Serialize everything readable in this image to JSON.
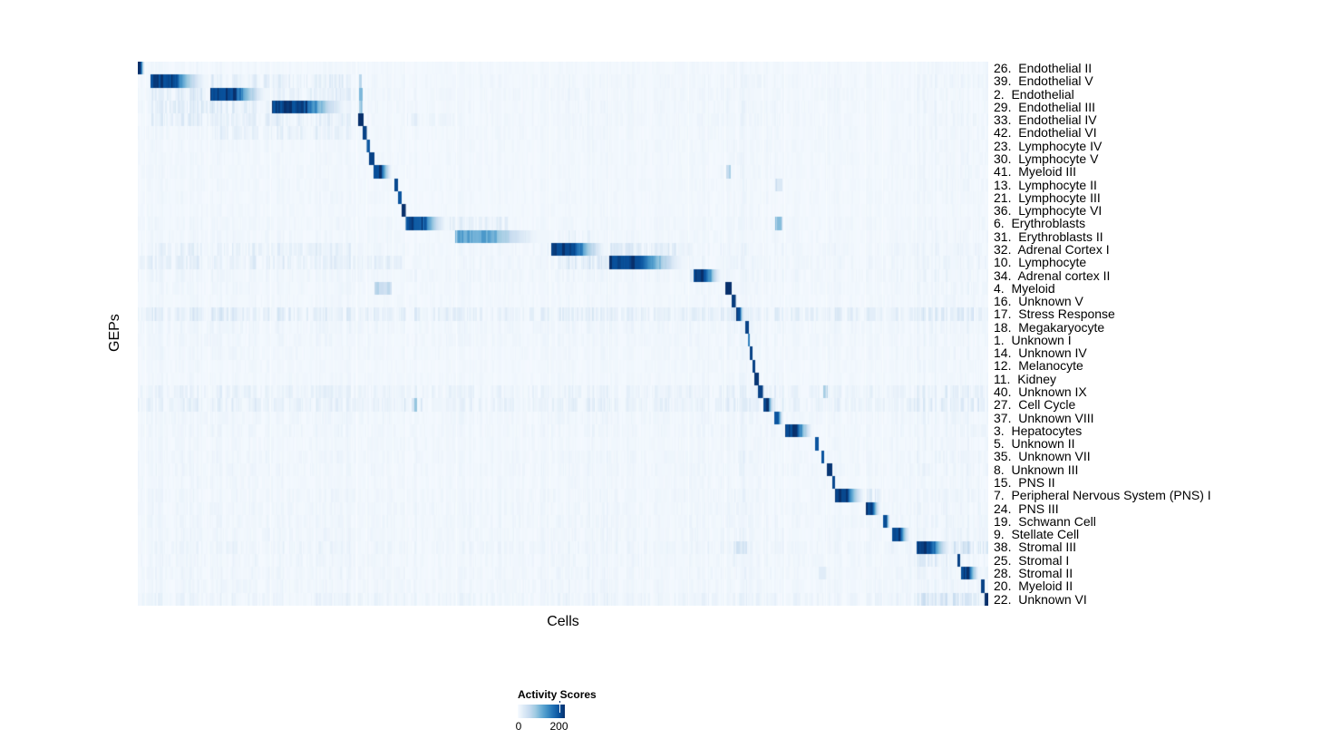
{
  "figure": {
    "y_axis_label": "GEPs",
    "x_axis_label": "Cells",
    "legend": {
      "title": "Activity Scores",
      "tick_min": "0",
      "tick_max": "200",
      "tick_max_pos": 0.875
    }
  },
  "chart_data": {
    "type": "heatmap",
    "xlabel": "Cells",
    "ylabel": "GEPs",
    "legend_title": "Activity Scores",
    "colorscale": {
      "name": "Blues",
      "min": 0,
      "max": 230,
      "legend_ticks": [
        0,
        200
      ],
      "stops": [
        "#f7fbff",
        "#deebf7",
        "#c6dbef",
        "#9ecae1",
        "#6baed6",
        "#4292c6",
        "#2171b5",
        "#08519c",
        "#08306b"
      ]
    },
    "description": "Each row is a GEP; cells (columns) are grouped so each GEP's assigned cell cluster forms a dark diagonal block. block = [start,end] fraction of x-axis, peak = activity score at block start.",
    "hot_columns": [
      [
        0.015,
        0.252,
        1.25
      ],
      [
        0.485,
        0.555,
        1.2
      ],
      [
        0.648,
        0.76,
        1.2
      ],
      [
        0.7,
        0.716,
        1.5
      ],
      [
        0.915,
        1.0,
        1.6
      ]
    ],
    "seams": [
      0.0085,
      0.0832,
      0.1557,
      0.257,
      0.2687,
      0.2996,
      0.3145,
      0.3742,
      0.484,
      0.5535,
      0.6472,
      0.69,
      0.703,
      0.735,
      0.76,
      0.809,
      0.8555,
      0.8755,
      0.915,
      0.963
    ],
    "rows": [
      {
        "label": "26.  Endothelial II",
        "block": [
          0.0005,
          0.008
        ],
        "peak": 230,
        "noise": 0.03
      },
      {
        "label": "39.  Endothelial V",
        "block": [
          0.015,
          0.084
        ],
        "peak": 230,
        "noise": 0.045,
        "texture": [
          [
            0.086,
            0.155,
            0.1
          ],
          [
            0.158,
            0.252,
            0.08
          ]
        ],
        "spots": [
          [
            0.2596,
            0.263,
            110
          ]
        ]
      },
      {
        "label": "2.  Endothelial",
        "block": [
          0.0855,
          0.1555
        ],
        "peak": 230,
        "noise": 0.045,
        "texture": [
          [
            0.015,
            0.084,
            0.12
          ],
          [
            0.158,
            0.255,
            0.09
          ]
        ],
        "spots": [
          [
            0.2596,
            0.2637,
            185
          ]
        ]
      },
      {
        "label": "29.  Endothelial III",
        "block": [
          0.158,
          0.2515
        ],
        "peak": 228,
        "noise": 0.045,
        "texture": [
          [
            0.015,
            0.155,
            0.11
          ]
        ],
        "spots": [
          [
            0.2596,
            0.2637,
            140
          ]
        ]
      },
      {
        "label": "33.  Endothelial IV",
        "block": [
          0.2591,
          0.2646
        ],
        "peak": 230,
        "noise": 0.045,
        "texture": [
          [
            0.015,
            0.252,
            0.09
          ],
          [
            0.315,
            0.372,
            0.07
          ]
        ]
      },
      {
        "label": "42.  Endothelial VI",
        "block": [
          0.2646,
          0.2689
        ],
        "peak": 215,
        "noise": 0.04,
        "texture": [
          [
            0.085,
            0.252,
            0.06
          ]
        ]
      },
      {
        "label": "23.  Lymphocyte IV",
        "block": [
          0.2689,
          0.2721
        ],
        "peak": 195,
        "noise": 0.035
      },
      {
        "label": "30.  Lymphocyte V",
        "block": [
          0.2721,
          0.2774
        ],
        "peak": 215,
        "noise": 0.035
      },
      {
        "label": "41.  Myeloid III",
        "block": [
          0.2774,
          0.2998
        ],
        "peak": 230,
        "noise": 0.035,
        "spots": [
          [
            0.6909,
            0.6971,
            100
          ]
        ]
      },
      {
        "label": "13.  Lymphocyte II",
        "block": [
          0.3017,
          0.3059
        ],
        "peak": 210,
        "noise": 0.035,
        "spots": [
          [
            0.7486,
            0.7575,
            55
          ]
        ]
      },
      {
        "label": "21.  Lymphocyte III",
        "block": [
          0.3059,
          0.31
        ],
        "peak": 200,
        "noise": 0.035
      },
      {
        "label": "36.  Lymphocyte VI",
        "block": [
          0.31,
          0.3147
        ],
        "peak": 230,
        "noise": 0.03
      },
      {
        "label": "6.  Erythroblasts",
        "block": [
          0.3147,
          0.366
        ],
        "peak": 215,
        "noise": 0.04,
        "texture": [
          [
            0.366,
            0.435,
            0.1
          ]
        ],
        "spots": [
          [
            0.7486,
            0.757,
            110
          ]
        ]
      },
      {
        "label": "31.  Erythroblasts II",
        "block": [
          0.3731,
          0.483
        ],
        "peak": 125,
        "noise": 0.04,
        "texture": [
          [
            0.483,
            0.531,
            0.05
          ]
        ]
      },
      {
        "label": "32.  Adrenal Cortex I",
        "block": [
          0.4861,
          0.5544
        ],
        "peak": 230,
        "noise": 0.055,
        "texture": [
          [
            0.5546,
            0.648,
            0.14
          ],
          [
            0.015,
            0.25,
            0.05
          ]
        ]
      },
      {
        "label": "10.  Lymphocyte",
        "block": [
          0.5544,
          0.6482
        ],
        "peak": 230,
        "noise": 0.055,
        "texture": [
          [
            0.4861,
            0.5544,
            0.12
          ],
          [
            0.001,
            0.31,
            0.07
          ]
        ]
      },
      {
        "label": "34.  Adrenal cortex II",
        "block": [
          0.6535,
          0.6879
        ],
        "peak": 230,
        "noise": 0.055,
        "texture": [
          [
            0.6482,
            0.6535,
            0.18
          ]
        ]
      },
      {
        "label": "4.  Myeloid",
        "block": [
          0.6909,
          0.6973
        ],
        "peak": 230,
        "noise": 0.04,
        "spots": [
          [
            0.278,
            0.298,
            80
          ]
        ]
      },
      {
        "label": "16.  Unknown V",
        "block": [
          0.6984,
          0.7026
        ],
        "peak": 220,
        "noise": 0.035
      },
      {
        "label": "17.  Stress Response",
        "block": [
          0.7036,
          0.7132
        ],
        "peak": 225,
        "noise": 0.15
      },
      {
        "label": "18.  Megakaryocyte",
        "block": [
          0.7143,
          0.7175
        ],
        "peak": 215,
        "noise": 0.055
      },
      {
        "label": "1.  Unknown I",
        "block": [
          0.7175,
          0.7196
        ],
        "peak": 160,
        "noise": 0.045
      },
      {
        "label": "14.  Unknown IV",
        "block": [
          0.7196,
          0.7228
        ],
        "peak": 215,
        "noise": 0.04
      },
      {
        "label": "12.  Melanocyte",
        "block": [
          0.7228,
          0.7251
        ],
        "peak": 215,
        "noise": 0.035
      },
      {
        "label": "11.  Kidney",
        "block": [
          0.7251,
          0.7294
        ],
        "peak": 225,
        "noise": 0.035
      },
      {
        "label": "40.  Unknown IX",
        "block": [
          0.7294,
          0.7347
        ],
        "peak": 215,
        "noise": 0.095,
        "spots": [
          [
            0.8059,
            0.8113,
            120
          ]
        ]
      },
      {
        "label": "27.  Cell Cycle",
        "block": [
          0.7357,
          0.7486
        ],
        "peak": 225,
        "noise": 0.12,
        "texture": [
          [
            0.3124,
            0.334,
            0.35
          ]
        ]
      },
      {
        "label": "37.  Unknown VIII",
        "block": [
          0.7486,
          0.7591
        ],
        "peak": 225,
        "noise": 0.05
      },
      {
        "label": "3.  Hepatocytes",
        "block": [
          0.7612,
          0.7953
        ],
        "peak": 230,
        "noise": 0.05
      },
      {
        "label": "5.  Unknown II",
        "block": [
          0.7964,
          0.7996
        ],
        "peak": 200,
        "noise": 0.04
      },
      {
        "label": "35.  Unknown VII",
        "block": [
          0.8038,
          0.807
        ],
        "peak": 200,
        "noise": 0.05
      },
      {
        "label": "8.  Unknown III",
        "block": [
          0.8102,
          0.8156
        ],
        "peak": 225,
        "noise": 0.05
      },
      {
        "label": "15.  PNS II",
        "block": [
          0.8166,
          0.8198
        ],
        "peak": 210,
        "noise": 0.04
      },
      {
        "label": "7.  Peripheral Nervous System (PNS) I",
        "block": [
          0.8198,
          0.8561
        ],
        "peak": 230,
        "noise": 0.05,
        "texture": [
          [
            0.8561,
            0.8742,
            0.22
          ]
        ]
      },
      {
        "label": "24.  PNS III",
        "block": [
          0.8561,
          0.8742
        ],
        "peak": 230,
        "noise": 0.05
      },
      {
        "label": "19.  Schwann Cell",
        "block": [
          0.8763,
          0.8848
        ],
        "peak": 230,
        "noise": 0.05
      },
      {
        "label": "9.  Stellate Cell",
        "block": [
          0.887,
          0.9094
        ],
        "peak": 230,
        "noise": 0.05
      },
      {
        "label": "38.  Stromal III",
        "block": [
          0.9158,
          0.9584
        ],
        "peak": 230,
        "noise": 0.065,
        "texture": [
          [
            0.959,
            1.0,
            0.14
          ]
        ],
        "spots": [
          [
            0.7,
            0.716,
            50
          ]
        ]
      },
      {
        "label": "25.  Stromal I",
        "block": [
          0.9637,
          0.9669
        ],
        "peak": 215,
        "noise": 0.05,
        "texture": [
          [
            0.916,
            0.958,
            0.09
          ]
        ]
      },
      {
        "label": "28.  Stromal II",
        "block": [
          0.968,
          0.9904
        ],
        "peak": 230,
        "noise": 0.05,
        "spots": [
          [
            0.8,
            0.81,
            45
          ]
        ]
      },
      {
        "label": "20.  Myeloid II",
        "block": [
          0.9915,
          0.9947
        ],
        "peak": 215,
        "noise": 0.05
      },
      {
        "label": "22.  Unknown VI",
        "block": [
          0.9957,
          1.0
        ],
        "peak": 230,
        "noise": 0.075,
        "texture": [
          [
            0.916,
            0.99,
            0.11
          ]
        ]
      }
    ]
  }
}
